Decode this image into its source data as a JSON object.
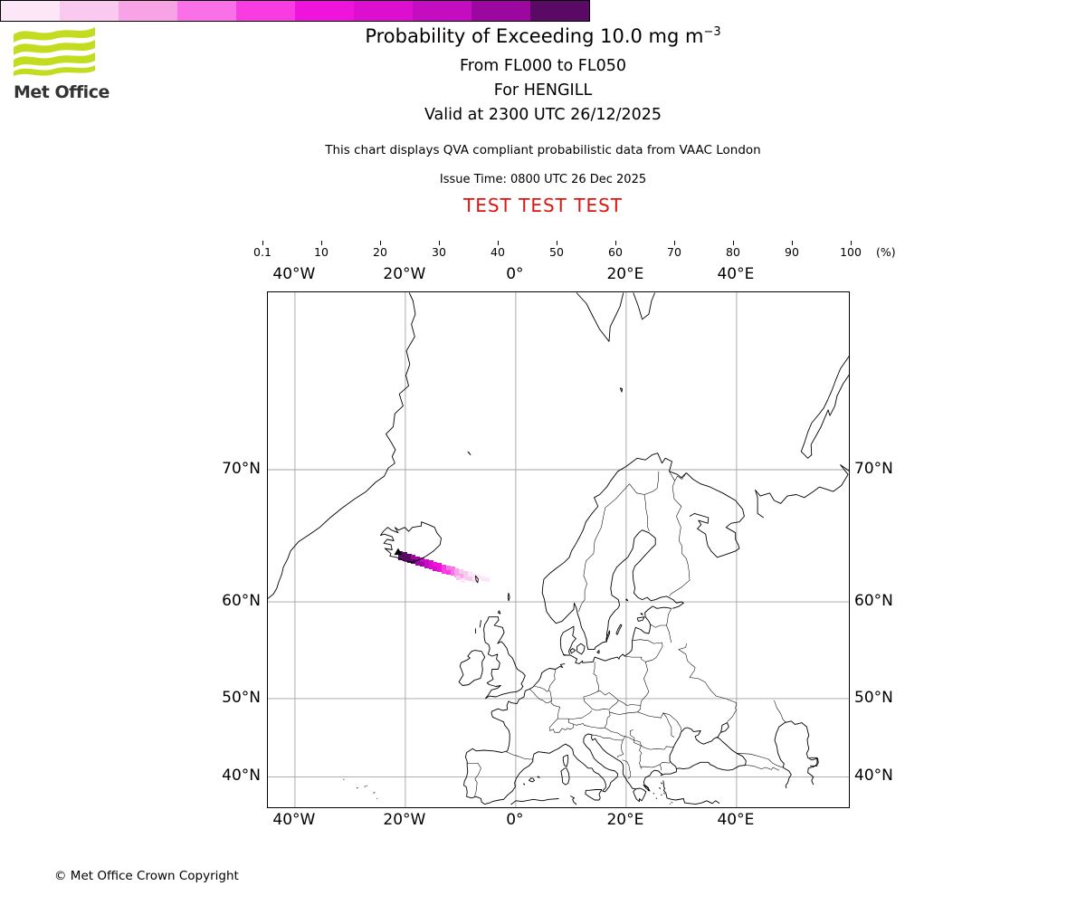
{
  "header": {
    "logo_text": "Met Office",
    "logo_green": "#c3dc20",
    "title_main": "Probability of Exceeding 10.0 mg m",
    "title_sup": "−3",
    "subtitle_fl": "From FL000 to FL050",
    "subtitle_volcano": "For HENGILL",
    "subtitle_valid": "Valid at 2300 UTC 26/12/2025",
    "note": "This chart displays QVA compliant probabilistic data from VAAC London",
    "issue_time": "Issue Time: 0800 UTC 26 Dec 2025",
    "test_banner": "TEST TEST TEST",
    "test_color": "#df1410"
  },
  "colorbar": {
    "tick_labels": [
      "0.1",
      "10",
      "20",
      "30",
      "40",
      "50",
      "60",
      "70",
      "80",
      "90",
      "100"
    ],
    "unit_label": "(%)",
    "colors": [
      "#fbe7f8",
      "#f9c9ef",
      "#f8a3e6",
      "#fa70e7",
      "#f83ce1",
      "#ef14dc",
      "#dc0ed0",
      "#c40cc0",
      "#9c07a0",
      "#5a0a64"
    ]
  },
  "map_axes": {
    "top_labels": [
      "40°W",
      "20°W",
      "0°",
      "20°E",
      "40°E"
    ],
    "bottom_labels": [
      "40°W",
      "20°W",
      "0°",
      "20°E",
      "40°E"
    ],
    "left_labels": [
      "70°N",
      "60°N",
      "50°N",
      "40°N"
    ],
    "right_labels": [
      "70°N",
      "60°N",
      "50°N",
      "40°N"
    ]
  },
  "chart_data": {
    "type": "heatmap",
    "title": "Probability of Exceeding 10.0 mg m-3, From FL000 to FL050, For HENGILL, Valid at 2300 UTC 26/12/2025",
    "legend_percent_levels": [
      0.1,
      10,
      20,
      30,
      40,
      50,
      60,
      70,
      80,
      90,
      100
    ],
    "projection": "Mercator, approx 45W-60E / 36N-78.5N, gridlines every 20 deg lon and 10 deg lat",
    "volcano": {
      "name": "HENGILL",
      "lat": 64.1,
      "lon": -21.3
    },
    "plume_cells": [
      [
        144,
        286,
        9
      ],
      [
        144,
        291,
        9
      ],
      [
        149,
        287,
        9
      ],
      [
        149,
        292,
        9
      ],
      [
        154,
        289,
        9
      ],
      [
        154,
        294,
        9
      ],
      [
        158,
        290,
        8
      ],
      [
        158,
        295,
        9
      ],
      [
        163,
        292,
        8
      ],
      [
        163,
        297,
        8
      ],
      [
        168,
        293,
        7
      ],
      [
        168,
        298,
        8
      ],
      [
        173,
        295,
        7
      ],
      [
        173,
        300,
        7
      ],
      [
        178,
        296,
        6
      ],
      [
        178,
        301,
        6
      ],
      [
        182,
        298,
        5
      ],
      [
        182,
        303,
        6
      ],
      [
        187,
        299,
        5
      ],
      [
        187,
        304,
        5
      ],
      [
        192,
        301,
        4
      ],
      [
        192,
        306,
        4
      ],
      [
        197,
        302,
        3
      ],
      [
        197,
        307,
        4
      ],
      [
        202,
        303,
        3
      ],
      [
        202,
        308,
        3
      ],
      [
        206,
        305,
        2
      ],
      [
        206,
        310,
        2
      ],
      [
        211,
        306,
        1
      ],
      [
        211,
        311,
        2
      ],
      [
        216,
        308,
        1
      ],
      [
        216,
        313,
        1
      ],
      [
        221,
        309,
        0
      ],
      [
        221,
        314,
        1
      ],
      [
        226,
        311,
        0
      ],
      [
        226,
        316,
        0
      ],
      [
        230,
        312,
        0
      ],
      [
        235,
        314,
        0
      ],
      [
        240,
        315,
        0
      ],
      [
        213,
        316,
        0
      ],
      [
        208,
        313,
        1
      ]
    ]
  },
  "footer": {
    "copyright": "© Met Office Crown Copyright"
  }
}
